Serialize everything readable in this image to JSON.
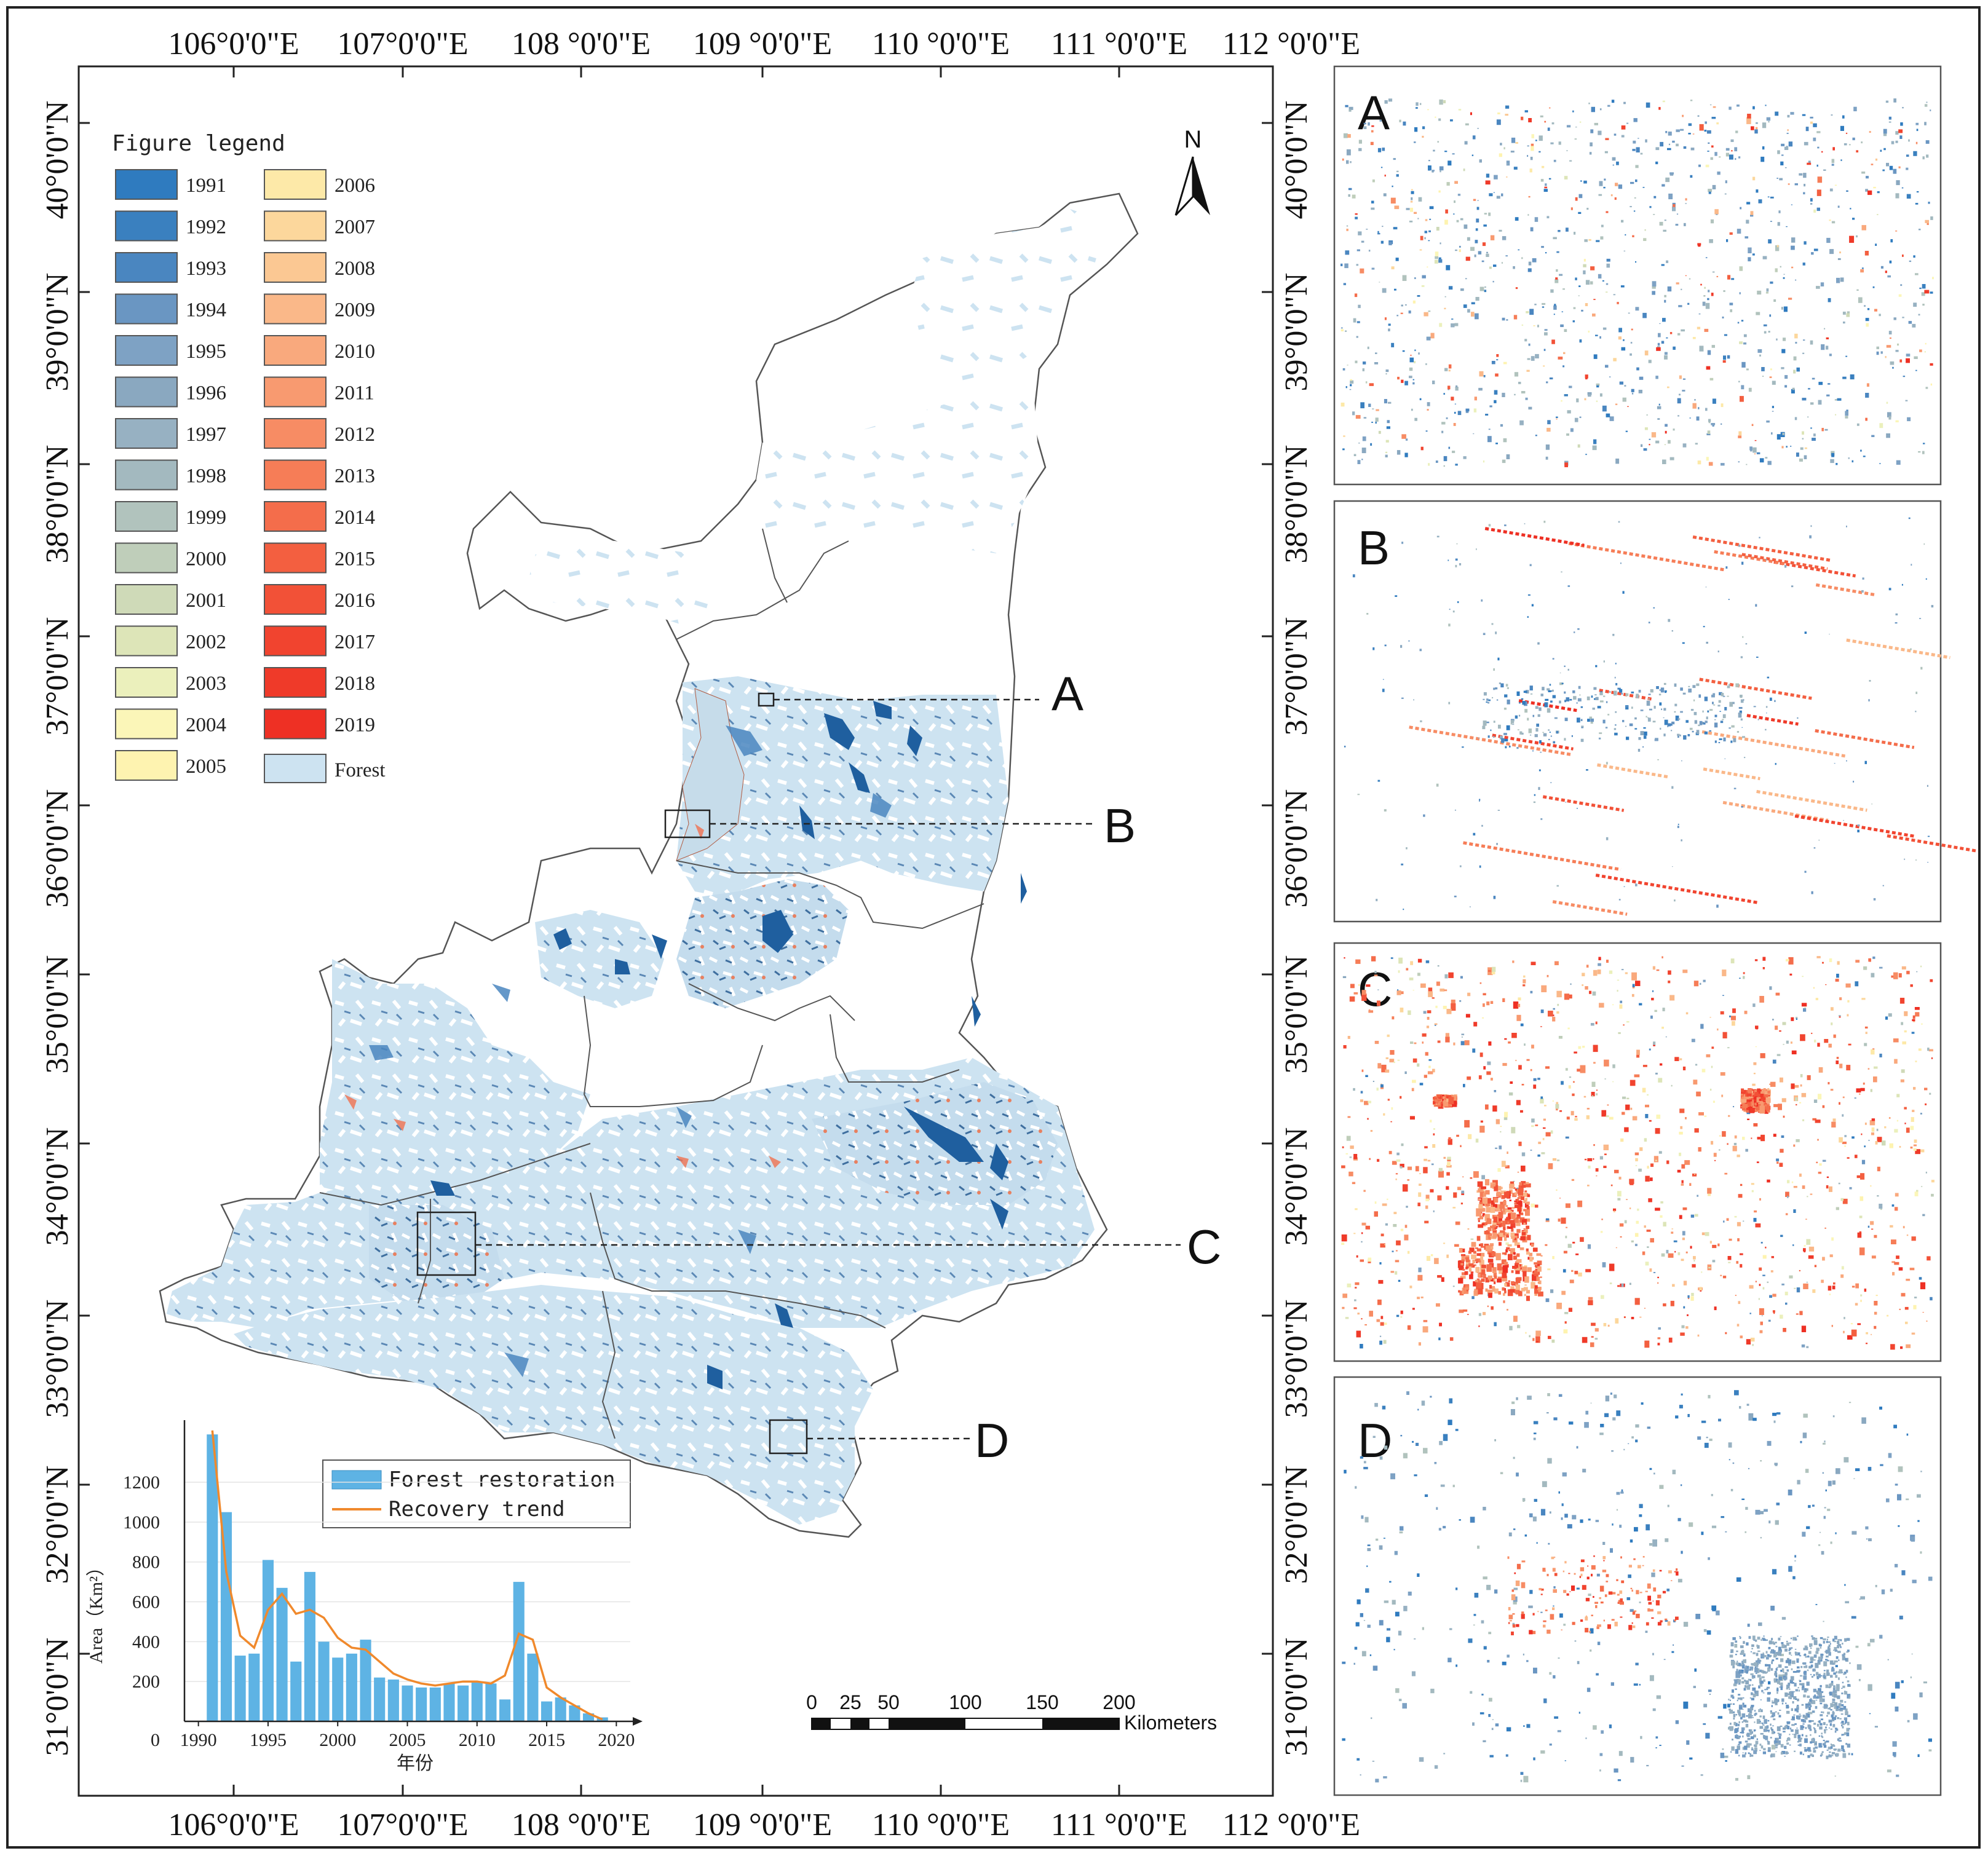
{
  "figure": {
    "lon_ticks_top": [
      "106°0'0\"E",
      "107°0'0\"E",
      "108 °0'0\"E",
      "109 °0'0\"E",
      "110 °0'0\"E",
      "111 °0'0\"E",
      "112 °0'0\"E"
    ],
    "lon_ticks_bottom": [
      "106°0'0\"E",
      "107°0'0\"E",
      "108 °0'0\"E",
      "109 °0'0\"E",
      "110 °0'0\"E",
      "111 °0'0\"E",
      "112 °0'0\"E"
    ],
    "lat_ticks_left": [
      "40°0'0\"N",
      "39°0'0\"N",
      "38°0'0\"N",
      "37°0'0\"N",
      "36°0'0\"N",
      "35°0'0\"N",
      "34°0'0\"N",
      "33°0'0\"N",
      "32°0'0\"N",
      "31°0'0\"N"
    ],
    "lat_ticks_right": [
      "40°0'0\"N",
      "39°0'0\"N",
      "38°0'0\"N",
      "37°0'0\"N",
      "36°0'0\"N",
      "35°0'0\"N",
      "34°0'0\"N",
      "33°0'0\"N",
      "32°0'0\"N",
      "31°0'0\"N"
    ]
  },
  "legend": {
    "title": "Figure legend",
    "items": [
      {
        "label": "1991",
        "color": "#2f7bbf"
      },
      {
        "label": "1992",
        "color": "#3a80bf"
      },
      {
        "label": "1993",
        "color": "#4a86c0"
      },
      {
        "label": "1994",
        "color": "#6a96c2"
      },
      {
        "label": "1995",
        "color": "#7ea2c4"
      },
      {
        "label": "1996",
        "color": "#8aa8c0"
      },
      {
        "label": "1997",
        "color": "#97b1c2"
      },
      {
        "label": "1998",
        "color": "#a3b9bf"
      },
      {
        "label": "1999",
        "color": "#b1c3bd"
      },
      {
        "label": "2000",
        "color": "#bfceba"
      },
      {
        "label": "2001",
        "color": "#cfdab8"
      },
      {
        "label": "2002",
        "color": "#dde5b8"
      },
      {
        "label": "2003",
        "color": "#ebf0bc"
      },
      {
        "label": "2004",
        "color": "#fbf6b8"
      },
      {
        "label": "2005",
        "color": "#fef3b0"
      },
      {
        "label": "2006",
        "color": "#fde9a8"
      },
      {
        "label": "2007",
        "color": "#fcd79c"
      },
      {
        "label": "2008",
        "color": "#fbc893"
      },
      {
        "label": "2009",
        "color": "#fab889"
      },
      {
        "label": "2010",
        "color": "#f9a97d"
      },
      {
        "label": "2011",
        "color": "#f89a70"
      },
      {
        "label": "2012",
        "color": "#f78c64"
      },
      {
        "label": "2013",
        "color": "#f67d57"
      },
      {
        "label": "2014",
        "color": "#f46d4b"
      },
      {
        "label": "2015",
        "color": "#f35f40"
      },
      {
        "label": "2016",
        "color": "#f25137"
      },
      {
        "label": "2017",
        "color": "#f1442f"
      },
      {
        "label": "2018",
        "color": "#ef3a29"
      },
      {
        "label": "2019",
        "color": "#ee3024"
      },
      {
        "label": "Forest",
        "color": "#cde3f1"
      }
    ]
  },
  "map": {
    "north_label": "N",
    "callouts": [
      "A",
      "B",
      "C",
      "D"
    ],
    "scale_bar": {
      "ticks": [
        "0",
        "25",
        "50",
        "100",
        "150",
        "200"
      ],
      "unit": "Kilometers"
    }
  },
  "panels": [
    {
      "letter": "A"
    },
    {
      "letter": "B"
    },
    {
      "letter": "C"
    },
    {
      "letter": "D"
    }
  ],
  "chart_data": {
    "type": "bar",
    "title": "",
    "xlabel": "年份",
    "ylabel": "Area（Km²）",
    "xlim": [
      1989,
      2021
    ],
    "ylim": [
      0,
      1450
    ],
    "x_ticks": [
      "1990",
      "1995",
      "2000",
      "2005",
      "2010",
      "2015",
      "2020"
    ],
    "y_ticks": [
      "0",
      "200",
      "400",
      "600",
      "800",
      "1000",
      "1200"
    ],
    "legend": [
      "Forest restoration",
      "Recovery trend"
    ],
    "bar_color": "#5eb3e4",
    "line_color": "#f0892c",
    "x": [
      1991,
      1992,
      1993,
      1994,
      1995,
      1996,
      1997,
      1998,
      1999,
      2000,
      2001,
      2002,
      2003,
      2004,
      2005,
      2006,
      2007,
      2008,
      2009,
      2010,
      2011,
      2012,
      2013,
      2014,
      2015,
      2016,
      2017,
      2018,
      2019
    ],
    "series": [
      {
        "name": "Forest restoration",
        "values": [
          1440,
          1050,
          330,
          340,
          810,
          670,
          300,
          750,
          400,
          320,
          340,
          410,
          220,
          210,
          180,
          170,
          170,
          190,
          180,
          200,
          190,
          110,
          700,
          340,
          100,
          120,
          80,
          40,
          20
        ]
      },
      {
        "name": "Recovery trend",
        "values": [
          1460,
          750,
          430,
          370,
          560,
          640,
          540,
          560,
          520,
          420,
          370,
          360,
          300,
          240,
          210,
          190,
          180,
          190,
          200,
          200,
          190,
          230,
          440,
          410,
          170,
          120,
          80,
          40,
          10
        ]
      }
    ]
  }
}
